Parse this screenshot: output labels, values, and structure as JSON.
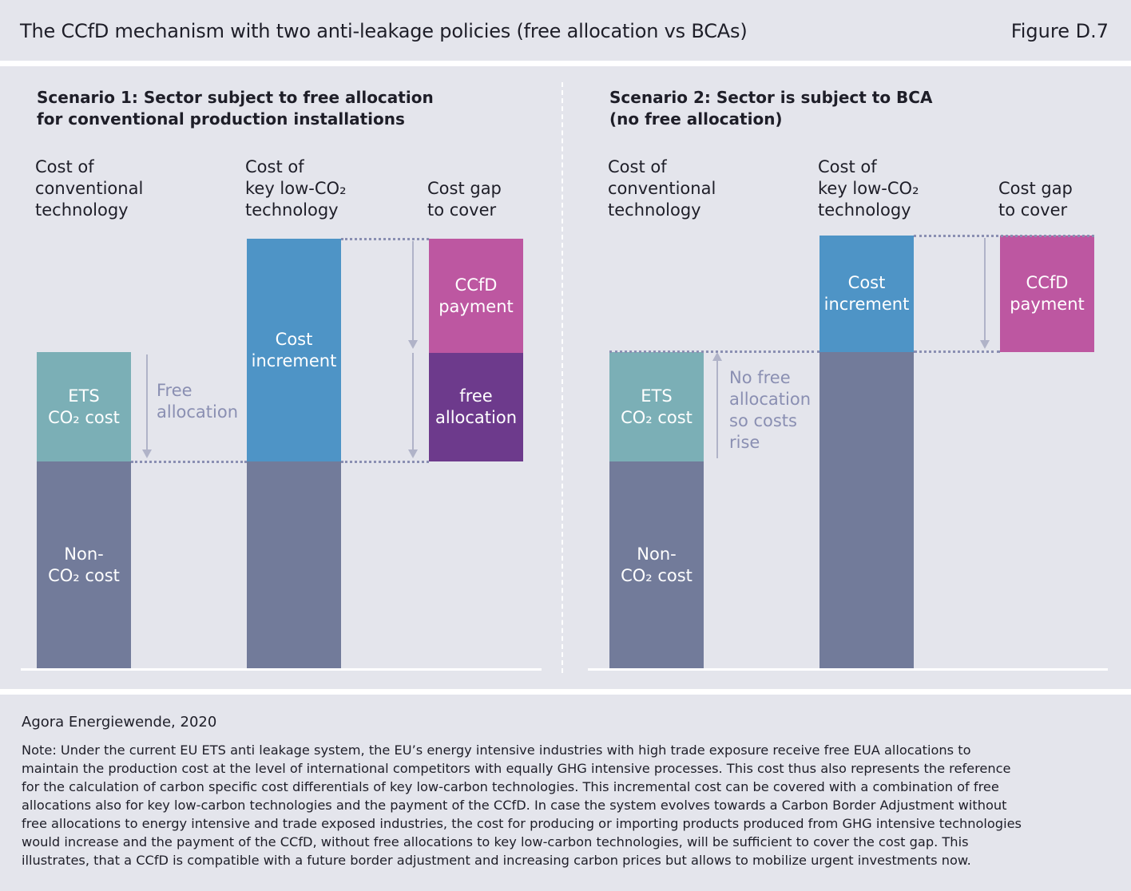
{
  "header": {
    "title": "The CCfD mechanism with two anti-leakage policies (free allocation vs BCAs)",
    "figure_label": "Figure D.7"
  },
  "scenario1": {
    "title_line1": "Scenario 1: Sector subject to free allocation",
    "title_line2": "for conventional production installations",
    "col_conventional": [
      "Cost of",
      "conventional",
      "technology"
    ],
    "col_lowco2": [
      "Cost of",
      "key low-CO₂",
      "technology"
    ],
    "col_gap": [
      "Cost gap",
      "to cover"
    ],
    "bars": {
      "ets": [
        "ETS",
        "CO₂ cost"
      ],
      "non_co2": [
        "Non-",
        "CO₂ cost"
      ],
      "increment": [
        "Cost",
        "increment"
      ],
      "ccfd": [
        "CCfD",
        "payment"
      ],
      "free": [
        "free",
        "allocation"
      ]
    },
    "annotation": [
      "Free",
      "allocation"
    ]
  },
  "scenario2": {
    "title_line1": "Scenario 2: Sector is subject to BCA",
    "title_line2": "(no free allocation)",
    "col_conventional": [
      "Cost of",
      "conventional",
      "technology"
    ],
    "col_lowco2": [
      "Cost of",
      "key low-CO₂",
      "technology"
    ],
    "col_gap": [
      "Cost gap",
      "to cover"
    ],
    "bars": {
      "ets": [
        "ETS",
        "CO₂ cost"
      ],
      "non_co2": [
        "Non-",
        "CO₂ cost"
      ],
      "increment": [
        "Cost",
        "increment"
      ],
      "ccfd": [
        "CCfD",
        "payment"
      ]
    },
    "annotation": [
      "No free",
      "allocation",
      "so costs",
      "rise"
    ]
  },
  "footer": {
    "source": "Agora Energiewende, 2020",
    "note": "Note: Under the current EU ETS anti leakage system, the EU’s energy intensive industries with high trade exposure receive free EUA allocations to\nmaintain the production cost at the level of international competitors with equally GHG intensive processes. This cost thus also represents the reference\nfor the calculation of carbon specific cost differentials of key low-carbon technologies. This incremental cost can be covered with a combination of free\nallocations also for key low-carbon technologies and the payment of the CCfD. In case the system evolves towards a Carbon Border Adjustment without\nfree allocations to energy intensive and trade exposed industries, the cost for producing or importing products produced from GHG intensive technologies\nwould increase and the payment of the CCfD, without free allocations to key low-carbon technologies, will be sufficient to cover the cost gap. This\nillustrates, that a CCfD is compatible with a future border adjustment and increasing carbon prices but allows to mobilize urgent investments now."
  },
  "colors": {
    "band": "#e4e5ec",
    "non_co2": "#727b9a",
    "ets": "#7bafb6",
    "increment": "#4e94c6",
    "ccfd": "#bd57a1",
    "free_allocation": "#6d3a8c",
    "annotation": "#8a8fb2"
  }
}
